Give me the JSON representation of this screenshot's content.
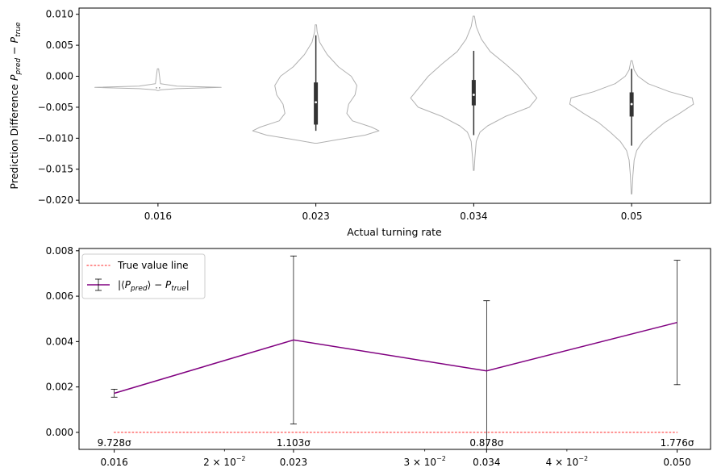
{
  "chart_data": [
    {
      "type": "violin",
      "title": "",
      "xlabel": "Actual turning rate",
      "ylabel": "Prediction Difference P_pred − P_true",
      "ylabel_parts": {
        "lead": "Prediction Difference ",
        "p": "P",
        "pred": "pred",
        "minus": " − ",
        "true": "true"
      },
      "ylim": [
        -0.0205,
        0.011
      ],
      "yticks": [
        0.01,
        0.005,
        0.0,
        -0.005,
        -0.01,
        -0.015,
        -0.02
      ],
      "ytick_labels": [
        "0.010",
        "0.005",
        "0.000",
        "−0.005",
        "−0.010",
        "−0.015",
        "−0.020"
      ],
      "categories": [
        "0.016",
        "0.023",
        "0.034",
        "0.05"
      ],
      "violins": [
        {
          "category": "0.016",
          "min": -0.0018,
          "max": 0.0012,
          "q1": -0.0018,
          "median": -0.0018,
          "q3": -0.0018,
          "whisker_low": -0.0018,
          "whisker_high": -0.0018,
          "profile": [
            [
              0.0012,
              0.01
            ],
            [
              0.0004,
              0.02
            ],
            [
              -0.0012,
              0.04
            ],
            [
              -0.0016,
              0.3
            ],
            [
              -0.0018,
              1.0
            ],
            [
              -0.002,
              0.3
            ],
            [
              -0.0022,
              0.04
            ],
            [
              -0.0023,
              0.01
            ]
          ]
        },
        {
          "category": "0.023",
          "min": -0.0108,
          "max": 0.0083,
          "q1": -0.0078,
          "median": -0.0042,
          "q3": -0.001,
          "whisker_low": -0.0088,
          "whisker_high": 0.0066,
          "profile": [
            [
              0.0083,
              0.01
            ],
            [
              0.0072,
              0.02
            ],
            [
              0.0055,
              0.06
            ],
            [
              0.0035,
              0.18
            ],
            [
              0.0015,
              0.36
            ],
            [
              0.0,
              0.56
            ],
            [
              -0.0015,
              0.65
            ],
            [
              -0.003,
              0.62
            ],
            [
              -0.0045,
              0.52
            ],
            [
              -0.006,
              0.49
            ],
            [
              -0.0072,
              0.58
            ],
            [
              -0.0082,
              0.88
            ],
            [
              -0.0088,
              1.0
            ],
            [
              -0.0095,
              0.78
            ],
            [
              -0.0102,
              0.36
            ],
            [
              -0.0108,
              0.02
            ]
          ]
        },
        {
          "category": "0.034",
          "min": -0.0152,
          "max": 0.0097,
          "q1": -0.0047,
          "median": -0.003,
          "q3": -0.0006,
          "whisker_low": -0.0095,
          "whisker_high": 0.0041,
          "profile": [
            [
              0.0097,
              0.01
            ],
            [
              0.008,
              0.04
            ],
            [
              0.007,
              0.08
            ],
            [
              0.006,
              0.12
            ],
            [
              0.004,
              0.26
            ],
            [
              0.002,
              0.5
            ],
            [
              0.0,
              0.72
            ],
            [
              -0.002,
              0.88
            ],
            [
              -0.0035,
              1.0
            ],
            [
              -0.005,
              0.88
            ],
            [
              -0.0065,
              0.5
            ],
            [
              -0.008,
              0.22
            ],
            [
              -0.009,
              0.1
            ],
            [
              -0.0105,
              0.04
            ],
            [
              -0.013,
              0.02
            ],
            [
              -0.0152,
              0.005
            ]
          ]
        },
        {
          "category": "0.05",
          "min": -0.019,
          "max": 0.0025,
          "q1": -0.0065,
          "median": -0.0045,
          "q3": -0.0026,
          "whisker_low": -0.0112,
          "whisker_high": 0.0012,
          "profile": [
            [
              0.0025,
              0.01
            ],
            [
              0.001,
              0.04
            ],
            [
              0.0,
              0.1
            ],
            [
              -0.0012,
              0.26
            ],
            [
              -0.0025,
              0.6
            ],
            [
              -0.0035,
              0.96
            ],
            [
              -0.0045,
              0.98
            ],
            [
              -0.006,
              0.76
            ],
            [
              -0.0075,
              0.52
            ],
            [
              -0.009,
              0.34
            ],
            [
              -0.0105,
              0.18
            ],
            [
              -0.012,
              0.08
            ],
            [
              -0.0135,
              0.04
            ],
            [
              -0.016,
              0.02
            ],
            [
              -0.019,
              0.005
            ]
          ]
        }
      ]
    },
    {
      "type": "line",
      "title": "",
      "xlabel": "",
      "ylabel": "",
      "xscale": "log",
      "xlim": [
        0.0149,
        0.0535
      ],
      "ylim": [
        -0.00075,
        0.0081
      ],
      "yticks": [
        0.0,
        0.002,
        0.004,
        0.006,
        0.008
      ],
      "ytick_labels": [
        "0.000",
        "0.002",
        "0.004",
        "0.006",
        "0.008"
      ],
      "xticks": [
        0.016,
        0.023,
        0.034,
        0.05
      ],
      "xtick_labels": [
        "0.016",
        "0.023",
        "0.034",
        "0.050"
      ],
      "minor_xticks": [
        {
          "value": 0.02,
          "mant": "2",
          "base": "10",
          "exp": "−2"
        },
        {
          "value": 0.03,
          "mant": "3",
          "base": "10",
          "exp": "−2"
        },
        {
          "value": 0.04,
          "mant": "4",
          "base": "10",
          "exp": "−2"
        }
      ],
      "series": [
        {
          "name": "|⟨P_pred⟩ − P_true|",
          "color": "#800080",
          "x": [
            0.016,
            0.023,
            0.034,
            0.05
          ],
          "y": [
            0.00172,
            0.00407,
            0.00271,
            0.00484
          ],
          "err_low": [
            0.00155,
            0.00037,
            -0.0008,
            0.0021
          ],
          "err_high": [
            0.0019,
            0.00777,
            0.0058,
            0.00758
          ]
        }
      ],
      "reference_line": {
        "name": "True value line",
        "y": 0.0,
        "color": "#ff6b6b",
        "style": "dotted"
      },
      "annotations": [
        {
          "x": 0.016,
          "text": "9.728σ"
        },
        {
          "x": 0.023,
          "text": "1.103σ"
        },
        {
          "x": 0.034,
          "text": "0.878σ"
        },
        {
          "x": 0.05,
          "text": "1.776σ"
        }
      ],
      "legend": {
        "position": "top-left",
        "items": [
          {
            "label": "True value line"
          },
          {
            "label_parts": {
              "bar1": "|⟨",
              "p": "P",
              "pred": "pred",
              "mid": "⟩ − ",
              "p2": "P",
              "true": "true",
              "bar2": "|"
            }
          }
        ]
      }
    }
  ]
}
